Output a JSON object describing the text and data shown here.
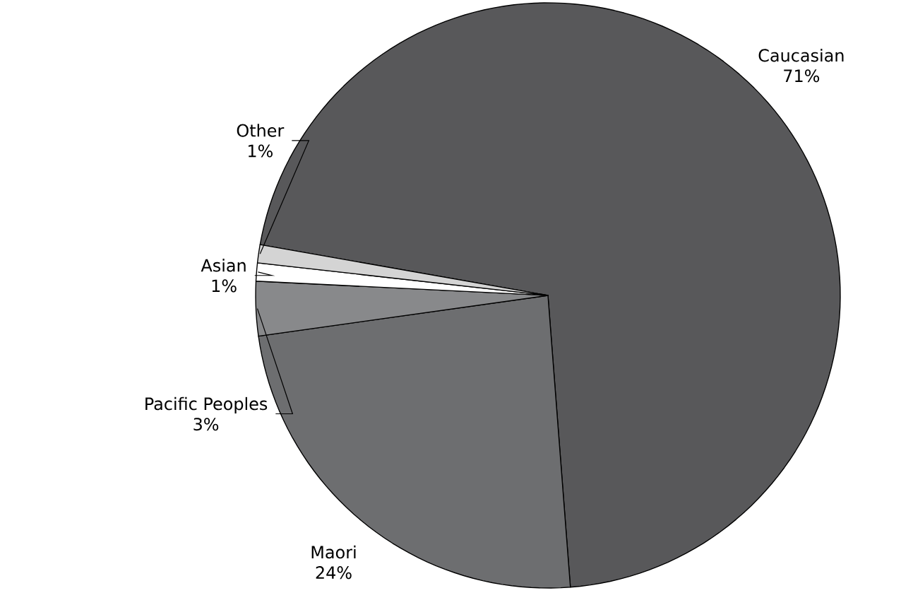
{
  "chart_data": {
    "type": "pie",
    "categories": [
      "Caucasian",
      "Maori",
      "Pacific Peoples",
      "Asian",
      "Other"
    ],
    "values": [
      71,
      24,
      3,
      1,
      1
    ],
    "value_labels": [
      "71%",
      "24%",
      "3%",
      "1%",
      "1%"
    ],
    "colors": [
      "#58585a",
      "#6d6e70",
      "#88898b",
      "#ffffff",
      "#d4d4d4"
    ]
  }
}
